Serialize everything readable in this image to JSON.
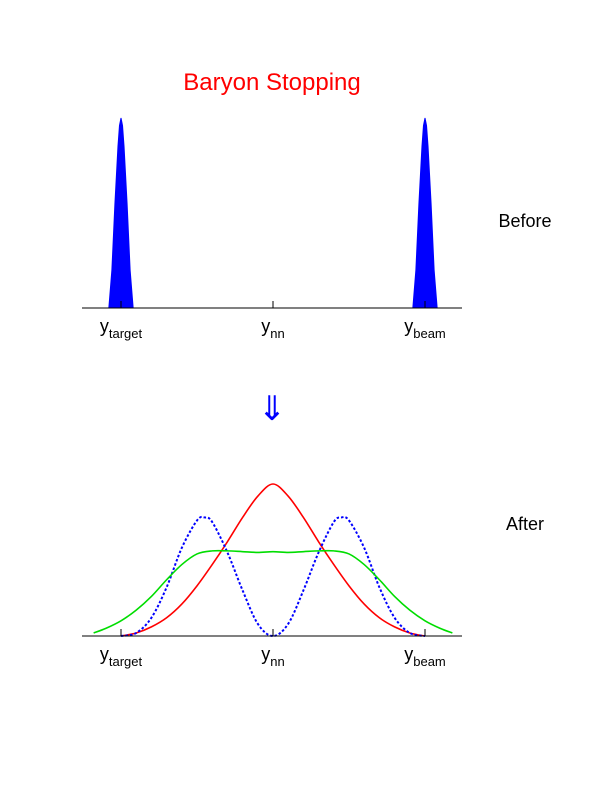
{
  "title": "Baryon Stopping",
  "arrow_symbol": "⇓",
  "colors": {
    "title": "#ff0000",
    "arrow": "#0000ff",
    "axis": "#000000"
  },
  "chart_data": [
    {
      "type": "area",
      "panel": "before",
      "side_label": "Before",
      "xlim": [
        -1.2,
        1.2
      ],
      "ylim": [
        0,
        1
      ],
      "grid": false,
      "legend": "none",
      "ticks": [
        {
          "x": -1,
          "main": "y",
          "sub": "target"
        },
        {
          "x": 0,
          "main": "y",
          "sub": "nn"
        },
        {
          "x": 1,
          "main": "y",
          "sub": "beam"
        }
      ],
      "series": [
        {
          "color": "#0000ff",
          "style": "filled",
          "x": [
            -1.08,
            -1.06,
            -1.04,
            -1.02,
            -1.01,
            -1.0,
            -0.99,
            -0.98,
            -0.96,
            -0.94,
            -0.92
          ],
          "y": [
            0.0,
            0.2,
            0.55,
            0.85,
            0.96,
            1.0,
            0.96,
            0.85,
            0.55,
            0.2,
            0.0
          ]
        },
        {
          "color": "#0000ff",
          "style": "filled",
          "x": [
            0.92,
            0.94,
            0.96,
            0.98,
            0.99,
            1.0,
            1.01,
            1.02,
            1.04,
            1.06,
            1.08
          ],
          "y": [
            0.0,
            0.2,
            0.55,
            0.85,
            0.96,
            1.0,
            0.96,
            0.85,
            0.55,
            0.2,
            0.0
          ]
        }
      ]
    },
    {
      "type": "line",
      "panel": "after",
      "side_label": "After",
      "xlim": [
        -1.2,
        1.2
      ],
      "ylim": [
        0,
        1
      ],
      "grid": false,
      "legend": "none",
      "ticks": [
        {
          "x": -1,
          "main": "y",
          "sub": "target"
        },
        {
          "x": 0,
          "main": "y",
          "sub": "nn"
        },
        {
          "x": 1,
          "main": "y",
          "sub": "beam"
        }
      ],
      "series": [
        {
          "color": "#ff0000",
          "style": "solid",
          "x": [
            -1.0,
            -0.9,
            -0.8,
            -0.7,
            -0.6,
            -0.5,
            -0.4,
            -0.3,
            -0.2,
            -0.1,
            0.0,
            0.1,
            0.2,
            0.3,
            0.4,
            0.5,
            0.6,
            0.7,
            0.8,
            0.9,
            1.0
          ],
          "y": [
            0.0,
            0.02,
            0.06,
            0.12,
            0.21,
            0.33,
            0.47,
            0.62,
            0.78,
            0.92,
            1.0,
            0.92,
            0.78,
            0.62,
            0.47,
            0.33,
            0.21,
            0.12,
            0.06,
            0.02,
            0.0
          ]
        },
        {
          "color": "#0000ff",
          "style": "dotted",
          "x": [
            -1.0,
            -0.9,
            -0.8,
            -0.7,
            -0.6,
            -0.5,
            -0.45,
            -0.4,
            -0.3,
            -0.2,
            -0.1,
            0.0,
            0.1,
            0.2,
            0.3,
            0.4,
            0.45,
            0.5,
            0.6,
            0.7,
            0.8,
            0.9,
            1.0
          ],
          "y": [
            0.0,
            0.02,
            0.12,
            0.32,
            0.58,
            0.76,
            0.78,
            0.75,
            0.55,
            0.3,
            0.08,
            0.0,
            0.08,
            0.3,
            0.55,
            0.75,
            0.78,
            0.76,
            0.58,
            0.32,
            0.12,
            0.02,
            0.0
          ]
        },
        {
          "color": "#00dd00",
          "style": "solid",
          "x": [
            -1.18,
            -1.1,
            -1.0,
            -0.9,
            -0.8,
            -0.7,
            -0.6,
            -0.5,
            -0.4,
            -0.3,
            -0.2,
            -0.1,
            0.0,
            0.1,
            0.2,
            0.3,
            0.4,
            0.5,
            0.6,
            0.7,
            0.8,
            0.9,
            1.0,
            1.1,
            1.18
          ],
          "y": [
            0.02,
            0.05,
            0.1,
            0.17,
            0.26,
            0.37,
            0.47,
            0.54,
            0.56,
            0.56,
            0.555,
            0.55,
            0.555,
            0.55,
            0.555,
            0.56,
            0.56,
            0.54,
            0.47,
            0.37,
            0.26,
            0.17,
            0.1,
            0.05,
            0.02
          ]
        }
      ]
    }
  ]
}
